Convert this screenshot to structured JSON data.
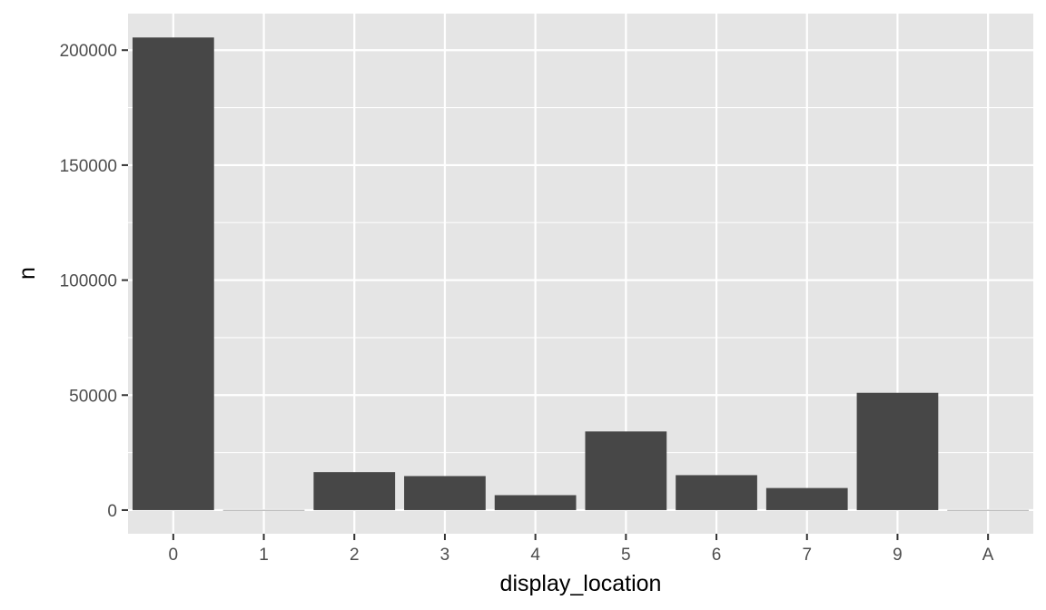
{
  "chart_data": {
    "type": "bar",
    "title": "",
    "xlabel": "display_location",
    "ylabel": "n",
    "categories": [
      "0",
      "1",
      "2",
      "3",
      "4",
      "5",
      "6",
      "7",
      "9",
      "A"
    ],
    "values": [
      205500,
      40,
      16500,
      14800,
      6500,
      34200,
      15200,
      9600,
      51000,
      40
    ],
    "ylim": [
      -10280,
      215880
    ],
    "yticks": [
      0,
      50000,
      100000,
      150000,
      200000
    ],
    "ytick_labels": [
      "0",
      "50000",
      "100000",
      "150000",
      "200000"
    ],
    "grid": true,
    "legend": "none",
    "colors": {
      "panel_background": "#e5e5e5",
      "gridline": "#ffffff",
      "bar_fill": "#474747",
      "tick_text": "#4d4d4d",
      "axis_title": "#000000"
    }
  }
}
